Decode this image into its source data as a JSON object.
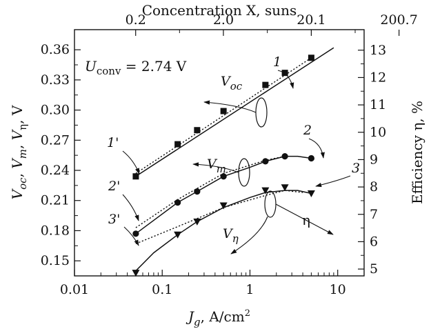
{
  "chart_data": {
    "type": "line",
    "x_axis": {
      "label_main": "J",
      "label_sub": "g",
      "label_unit": ", A/cm",
      "label_sup": "2",
      "scale": "log",
      "range": [
        0.01,
        20
      ],
      "ticks": [
        0.01,
        0.1,
        1,
        10
      ],
      "tick_labels": [
        "0.01",
        "0.1",
        "1",
        "10"
      ]
    },
    "top_axis": {
      "label": "Concentration X, suns",
      "ticks_at_Jg": [
        0.0498,
        0.498,
        5,
        50
      ],
      "tick_labels": [
        "0.2",
        "2.0",
        "20.1",
        "200.7"
      ]
    },
    "left_axis": {
      "label_parts": [
        {
          "t": "V",
          "i": true
        },
        {
          "t": "oc",
          "sub": true,
          "i": true
        },
        {
          "t": ", ",
          "i": false
        },
        {
          "t": "V",
          "i": true
        },
        {
          "t": "m",
          "sub": true,
          "i": true
        },
        {
          "t": ", ",
          "i": false
        },
        {
          "t": "V",
          "i": true
        },
        {
          "t": "η",
          "sub": true,
          "i": false
        },
        {
          "t": ", V",
          "i": false
        }
      ],
      "range": [
        0.135,
        0.38
      ],
      "ticks": [
        0.15,
        0.18,
        0.21,
        0.24,
        0.27,
        0.3,
        0.33,
        0.36
      ],
      "tick_labels": [
        "0.15",
        "0.18",
        "0.21",
        "0.24",
        "0.27",
        "0.30",
        "0.33",
        "0.36"
      ]
    },
    "right_axis": {
      "label": "Efficiency η, %",
      "range": [
        4.75,
        13.75
      ],
      "ticks": [
        5,
        6,
        7,
        8,
        9,
        10,
        11,
        12,
        13
      ],
      "tick_labels": [
        "5",
        "6",
        "7",
        "8",
        "9",
        "10",
        "11",
        "12",
        "13"
      ]
    },
    "inset": {
      "main": "U",
      "sub": "conv",
      "rest": " = 2.74 V"
    },
    "series": [
      {
        "label": "1",
        "marker": "square",
        "points": {
          "x": [
            0.05,
            0.15,
            0.25,
            0.5,
            1.5,
            2.5,
            5
          ],
          "y": [
            0.234,
            0.266,
            0.28,
            0.299,
            0.325,
            0.337,
            0.352
          ]
        },
        "solid_line": {
          "x": [
            0.05,
            9
          ],
          "y": [
            0.234,
            0.362
          ]
        },
        "dotted_line": {
          "x": [
            0.05,
            5
          ],
          "y": [
            0.237,
            0.352
          ]
        }
      },
      {
        "label": "2",
        "marker": "circle",
        "points": {
          "x": [
            0.05,
            0.15,
            0.25,
            0.5,
            1.5,
            2.5,
            5
          ],
          "y": [
            0.177,
            0.208,
            0.219,
            0.234,
            0.249,
            0.254,
            0.252
          ]
        },
        "solid_line": {
          "x": [
            0.05,
            0.15,
            0.25,
            0.5,
            1.0,
            1.5,
            2.5,
            3.5,
            5
          ],
          "y": [
            0.177,
            0.208,
            0.219,
            0.234,
            0.243,
            0.249,
            0.254,
            0.254,
            0.252
          ]
        },
        "dotted_line": {
          "x": [
            0.05,
            0.15,
            0.5,
            1.5,
            2.5
          ],
          "y": [
            0.183,
            0.211,
            0.237,
            0.25,
            0.254
          ]
        }
      },
      {
        "label": "3",
        "marker": "triangle-down",
        "points": {
          "x": [
            0.05,
            0.15,
            0.25,
            0.5,
            1.5,
            2.5,
            5
          ],
          "y": [
            0.138,
            0.176,
            0.189,
            0.205,
            0.22,
            0.223,
            0.217
          ]
        },
        "solid_line": {
          "x": [
            0.05,
            0.08,
            0.15,
            0.25,
            0.5,
            1.0,
            1.5,
            2.5,
            3.5,
            5
          ],
          "y": [
            0.14,
            0.158,
            0.176,
            0.189,
            0.203,
            0.213,
            0.218,
            0.22,
            0.22,
            0.217
          ]
        },
        "dotted_line": {
          "x": [
            0.05,
            0.15,
            0.5,
            1.5,
            2.5,
            4
          ],
          "y": [
            0.167,
            0.184,
            0.203,
            0.215,
            0.22,
            0.218
          ]
        }
      }
    ],
    "curve_labels": [
      {
        "text": "1'",
        "series": "1"
      },
      {
        "text": "2'",
        "series": "2"
      },
      {
        "text": "3'",
        "series": "3"
      }
    ],
    "group_labels": [
      {
        "main": "V",
        "sub": "oc"
      },
      {
        "main": "V",
        "sub": "m"
      },
      {
        "main": "V",
        "sub": "η"
      }
    ],
    "efficiency_label": "η"
  }
}
